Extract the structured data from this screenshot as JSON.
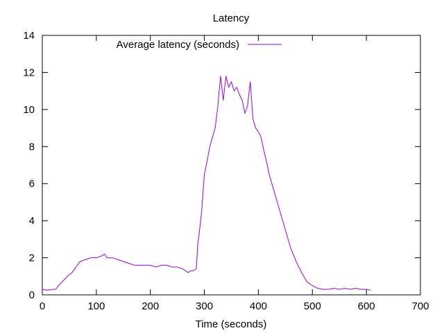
{
  "chart_data": {
    "type": "line",
    "title": "Latency",
    "xlabel": "Time (seconds)",
    "ylabel": "",
    "xlim": [
      0,
      700
    ],
    "ylim": [
      0,
      14
    ],
    "xticks": [
      "0",
      "100",
      "200",
      "300",
      "400",
      "500",
      "600",
      "700"
    ],
    "yticks": [
      "0",
      "2",
      "4",
      "6",
      "8",
      "10",
      "12",
      "14"
    ],
    "grid": false,
    "legend_position": "top-left",
    "series": [
      {
        "name": "Average latency (seconds)",
        "color": "#9400d3",
        "x": [
          0,
          10,
          20,
          25,
          30,
          40,
          50,
          55,
          60,
          65,
          70,
          80,
          90,
          100,
          110,
          115,
          120,
          130,
          140,
          150,
          160,
          170,
          180,
          190,
          200,
          210,
          220,
          230,
          240,
          250,
          260,
          270,
          275,
          280,
          285,
          288,
          290,
          295,
          300,
          305,
          310,
          315,
          320,
          325,
          330,
          335,
          340,
          345,
          350,
          355,
          360,
          365,
          370,
          375,
          380,
          385,
          390,
          395,
          400,
          405,
          410,
          415,
          420,
          425,
          430,
          440,
          450,
          460,
          470,
          480,
          490,
          500,
          510,
          520,
          530,
          540,
          550,
          560,
          570,
          580,
          590,
          600,
          608
        ],
        "y": [
          0.3,
          0.25,
          0.3,
          0.3,
          0.5,
          0.8,
          1.1,
          1.2,
          1.4,
          1.6,
          1.8,
          1.9,
          2.0,
          2.0,
          2.1,
          2.2,
          2.0,
          2.0,
          1.9,
          1.8,
          1.7,
          1.6,
          1.6,
          1.6,
          1.6,
          1.5,
          1.6,
          1.6,
          1.5,
          1.5,
          1.4,
          1.2,
          1.3,
          1.3,
          1.4,
          2.8,
          3.2,
          4.5,
          6.5,
          7.2,
          8.0,
          8.5,
          9.0,
          10.2,
          11.8,
          10.5,
          11.8,
          11.2,
          11.5,
          11.0,
          11.2,
          10.8,
          10.5,
          9.8,
          10.2,
          11.5,
          9.5,
          9.0,
          8.8,
          8.5,
          7.8,
          7.2,
          6.5,
          6.0,
          5.5,
          4.5,
          3.5,
          2.5,
          1.8,
          1.2,
          0.7,
          0.5,
          0.35,
          0.3,
          0.3,
          0.35,
          0.3,
          0.35,
          0.3,
          0.35,
          0.3,
          0.3,
          0.25
        ]
      }
    ]
  }
}
